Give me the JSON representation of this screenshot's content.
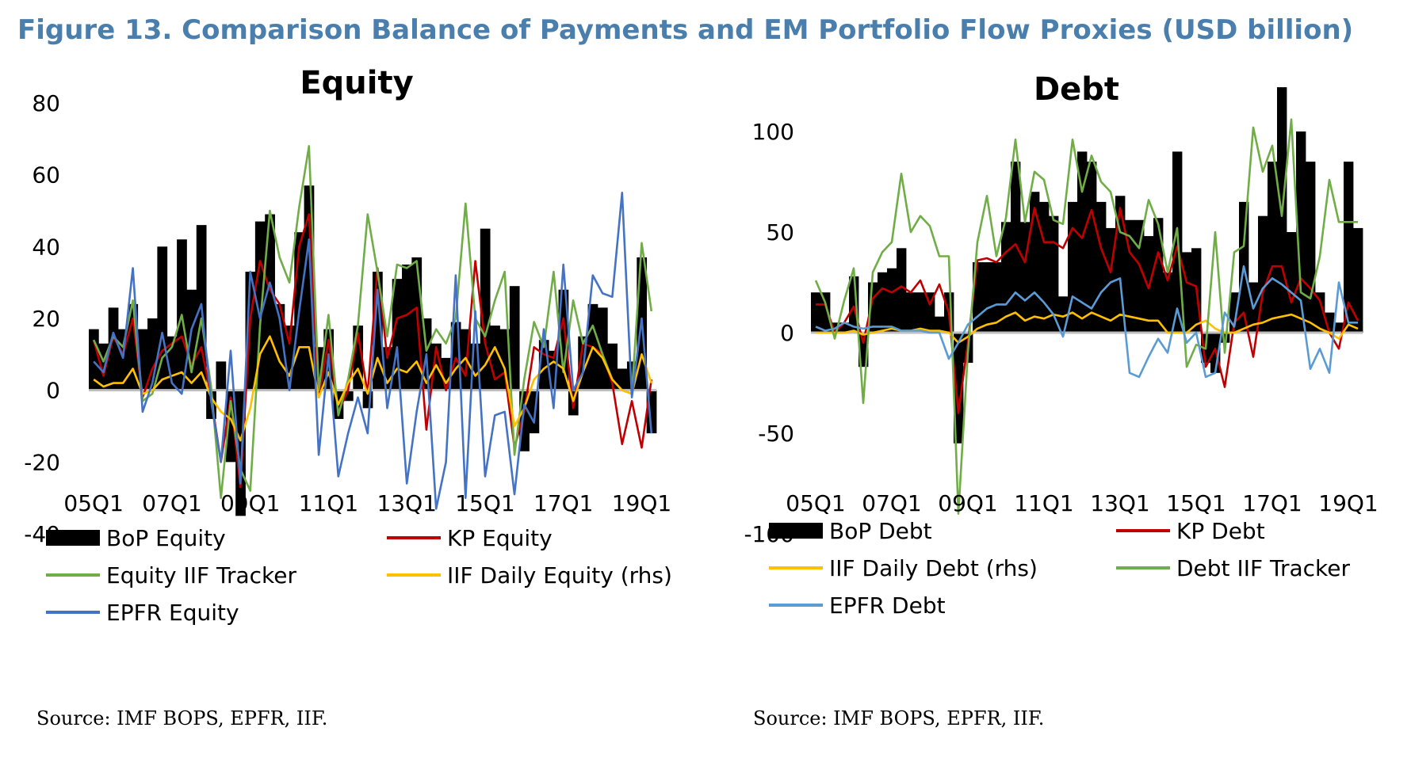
{
  "figure_title": "Figure 13. Comparison Balance of Payments and EM Portfolio Flow Proxies (USD billion)",
  "sources": [
    "Source: IMF BOPS, EPFR, IIF.",
    "Source: IMF BOPS, EPFR, IIF."
  ],
  "chart_data": [
    {
      "type": "bar",
      "title": "Equity",
      "ylim": [
        -40,
        80
      ],
      "yticks": [
        80,
        60,
        40,
        20,
        0,
        -20,
        -40
      ],
      "x": [
        "05Q1",
        "05Q2",
        "05Q3",
        "05Q4",
        "06Q1",
        "06Q2",
        "06Q3",
        "06Q4",
        "07Q1",
        "07Q2",
        "07Q3",
        "07Q4",
        "08Q1",
        "08Q2",
        "08Q3",
        "08Q4",
        "09Q1",
        "09Q2",
        "09Q3",
        "09Q4",
        "10Q1",
        "10Q2",
        "10Q3",
        "10Q4",
        "11Q1",
        "11Q2",
        "11Q3",
        "11Q4",
        "12Q1",
        "12Q2",
        "12Q3",
        "12Q4",
        "13Q1",
        "13Q2",
        "13Q3",
        "13Q4",
        "14Q1",
        "14Q2",
        "14Q3",
        "14Q4",
        "15Q1",
        "15Q2",
        "15Q3",
        "15Q4",
        "16Q1",
        "16Q2",
        "16Q3",
        "16Q4",
        "17Q1",
        "17Q2",
        "17Q3",
        "17Q4",
        "18Q1",
        "18Q2",
        "18Q3",
        "18Q4",
        "19Q1",
        "19Q2"
      ],
      "xtick_labels": [
        "05Q1",
        "07Q1",
        "09Q1",
        "11Q1",
        "13Q1",
        "15Q1",
        "17Q1",
        "19Q1"
      ],
      "xtick_every": 8,
      "grid": false,
      "legend": "bottom",
      "bar_series": [
        {
          "name": "BoP Equity",
          "color": "#000000",
          "values": [
            17,
            13,
            23,
            17,
            24,
            17,
            20,
            40,
            15,
            42,
            28,
            46,
            -8,
            8,
            -20,
            -35,
            33,
            47,
            49,
            24,
            18,
            44,
            57,
            12,
            17,
            -8,
            -3,
            18,
            -5,
            33,
            12,
            31,
            35,
            37,
            20,
            13,
            9,
            19,
            17,
            13,
            45,
            18,
            17,
            29,
            -17,
            -12,
            14,
            11,
            28,
            -7,
            15,
            24,
            23,
            13,
            6,
            8,
            37,
            -12
          ]
        }
      ],
      "series": [
        {
          "name": "KP Equity",
          "color": "#c00000",
          "values": [
            14,
            4,
            15,
            10,
            20,
            -2,
            6,
            11,
            13,
            15,
            7,
            12,
            -2,
            -20,
            -2,
            -27,
            20,
            36,
            28,
            24,
            13,
            40,
            49,
            -2,
            14,
            -6,
            0,
            16,
            -1,
            34,
            9,
            20,
            21,
            23,
            -11,
            12,
            0,
            9,
            4,
            36,
            13,
            3,
            5,
            -16,
            -6,
            12,
            10,
            9,
            20,
            -5,
            13,
            12,
            10,
            2,
            -15,
            -3,
            -16,
            3
          ]
        },
        {
          "name": "Equity IIF Tracker",
          "color": "#70ad47",
          "values": [
            14,
            8,
            15,
            12,
            25,
            -3,
            -1,
            9,
            12,
            21,
            5,
            20,
            1,
            -30,
            -3,
            -22,
            -28,
            18,
            50,
            37,
            30,
            51,
            68,
            0,
            21,
            -7,
            3,
            18,
            49,
            33,
            15,
            35,
            34,
            36,
            11,
            17,
            13,
            20,
            52,
            20,
            15,
            25,
            33,
            -18,
            3,
            19,
            12,
            33,
            5,
            25,
            13,
            18,
            10,
            3,
            0,
            -1,
            41,
            22
          ]
        },
        {
          "name": "IIF Daily Equity (rhs)",
          "color": "#ffc000",
          "values": [
            3,
            1,
            2,
            2,
            6,
            -1,
            0,
            3,
            4,
            5,
            2,
            5,
            -2,
            -6,
            -8,
            -14,
            -5,
            10,
            15,
            8,
            4,
            12,
            12,
            -2,
            5,
            -4,
            2,
            6,
            -1,
            9,
            2,
            6,
            5,
            8,
            2,
            7,
            2,
            6,
            9,
            4,
            7,
            12,
            6,
            -10,
            -5,
            3,
            6,
            8,
            6,
            -3,
            5,
            12,
            9,
            3,
            0,
            -1,
            10,
            2
          ]
        },
        {
          "name": "EPFR Equity",
          "color": "#4472c4",
          "values": [
            8,
            5,
            16,
            9,
            34,
            -6,
            2,
            16,
            2,
            -1,
            17,
            24,
            -3,
            -20,
            11,
            -26,
            33,
            20,
            30,
            20,
            0,
            22,
            42,
            -18,
            10,
            -24,
            -12,
            -2,
            -12,
            28,
            -5,
            12,
            -26,
            -6,
            10,
            -33,
            -20,
            32,
            -30,
            22,
            -24,
            -7,
            -6,
            -29,
            -4,
            -9,
            17,
            -5,
            35,
            0,
            5,
            32,
            27,
            26,
            55,
            -2,
            20,
            -12
          ]
        }
      ]
    },
    {
      "type": "bar",
      "title": "Debt",
      "ylim": [
        -100,
        100
      ],
      "yticks": [
        100,
        50,
        0,
        -50,
        -100
      ],
      "x": [
        "05Q1",
        "05Q2",
        "05Q3",
        "05Q4",
        "06Q1",
        "06Q2",
        "06Q3",
        "06Q4",
        "07Q1",
        "07Q2",
        "07Q3",
        "07Q4",
        "08Q1",
        "08Q2",
        "08Q3",
        "08Q4",
        "09Q1",
        "09Q2",
        "09Q3",
        "09Q4",
        "10Q1",
        "10Q2",
        "10Q3",
        "10Q4",
        "11Q1",
        "11Q2",
        "11Q3",
        "11Q4",
        "12Q1",
        "12Q2",
        "12Q3",
        "12Q4",
        "13Q1",
        "13Q2",
        "13Q3",
        "13Q4",
        "14Q1",
        "14Q2",
        "14Q3",
        "14Q4",
        "15Q1",
        "15Q2",
        "15Q3",
        "15Q4",
        "16Q1",
        "16Q2",
        "16Q3",
        "16Q4",
        "17Q1",
        "17Q2",
        "17Q3",
        "17Q4",
        "18Q1",
        "18Q2",
        "18Q3",
        "18Q4",
        "19Q1",
        "19Q2"
      ],
      "xtick_labels": [
        "05Q1",
        "07Q1",
        "09Q1",
        "11Q1",
        "13Q1",
        "15Q1",
        "17Q1",
        "19Q1"
      ],
      "xtick_every": 8,
      "grid": false,
      "legend": "bottom",
      "bar_series": [
        {
          "name": "BoP Debt",
          "color": "#000000",
          "values": [
            20,
            20,
            5,
            5,
            28,
            -17,
            25,
            30,
            32,
            42,
            20,
            20,
            20,
            8,
            20,
            -55,
            -15,
            35,
            35,
            35,
            55,
            85,
            55,
            70,
            65,
            58,
            18,
            65,
            90,
            85,
            65,
            52,
            68,
            56,
            56,
            48,
            57,
            30,
            90,
            40,
            42,
            -15,
            -20,
            -5,
            20,
            65,
            25,
            58,
            85,
            122,
            50,
            100,
            85,
            20,
            10,
            5,
            85,
            52
          ]
        }
      ],
      "series": [
        {
          "name": "KP Debt",
          "color": "#c00000",
          "values": [
            14,
            14,
            0,
            5,
            13,
            -5,
            17,
            22,
            20,
            23,
            20,
            26,
            14,
            24,
            10,
            -40,
            -5,
            36,
            37,
            35,
            40,
            44,
            35,
            62,
            45,
            45,
            42,
            52,
            47,
            61,
            42,
            30,
            62,
            40,
            34,
            22,
            40,
            26,
            43,
            25,
            23,
            -17,
            -8,
            -27,
            5,
            10,
            -12,
            20,
            33,
            33,
            15,
            27,
            22,
            16,
            0,
            -8,
            15,
            6
          ]
        },
        {
          "name": "IIF Daily Debt (rhs)",
          "color": "#ffc000",
          "values": [
            0,
            0,
            0,
            0,
            1,
            -1,
            0,
            1,
            2,
            1,
            1,
            2,
            1,
            1,
            0,
            -5,
            -2,
            2,
            4,
            5,
            8,
            10,
            6,
            8,
            7,
            9,
            8,
            10,
            7,
            10,
            8,
            6,
            9,
            8,
            7,
            6,
            6,
            0,
            0,
            0,
            4,
            6,
            2,
            0,
            0,
            2,
            4,
            5,
            7,
            8,
            9,
            7,
            5,
            2,
            0,
            -3,
            4,
            2
          ]
        },
        {
          "name": "Debt IIF Tracker",
          "color": "#70ad47",
          "values": [
            26,
            15,
            -3,
            16,
            32,
            -35,
            30,
            40,
            45,
            79,
            50,
            58,
            53,
            38,
            38,
            -90,
            -10,
            45,
            68,
            38,
            57,
            96,
            55,
            80,
            76,
            56,
            54,
            96,
            70,
            88,
            75,
            70,
            50,
            48,
            42,
            66,
            54,
            30,
            52,
            -17,
            -6,
            -8,
            50,
            -10,
            40,
            43,
            102,
            80,
            93,
            58,
            106,
            20,
            17,
            38,
            76,
            55,
            55,
            55
          ]
        },
        {
          "name": "EPFR Debt",
          "color": "#5b9bd5",
          "values": [
            3,
            1,
            2,
            5,
            3,
            2,
            3,
            3,
            3,
            1,
            1,
            1,
            0,
            0,
            -13,
            -5,
            4,
            8,
            12,
            14,
            14,
            20,
            16,
            20,
            15,
            9,
            -2,
            18,
            15,
            12,
            20,
            25,
            27,
            -20,
            -22,
            -12,
            -3,
            -10,
            12,
            -5,
            0,
            -22,
            -20,
            10,
            3,
            33,
            12,
            22,
            27,
            24,
            20,
            16,
            -18,
            -8,
            -20,
            25,
            5,
            5
          ]
        }
      ]
    }
  ]
}
